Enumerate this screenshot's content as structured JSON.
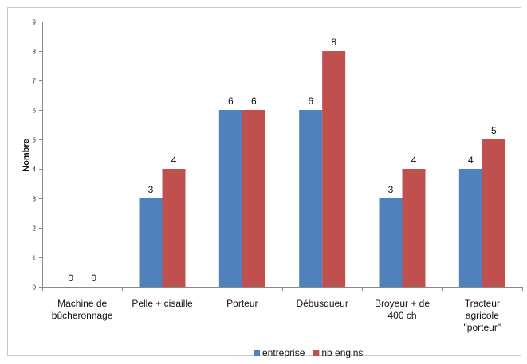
{
  "chart_data": {
    "type": "bar",
    "title": "",
    "xlabel": "",
    "ylabel": "Nombre",
    "ylim": [
      0,
      9
    ],
    "yticks": [
      0,
      1,
      2,
      3,
      4,
      5,
      6,
      7,
      8,
      9
    ],
    "grid": false,
    "legend_position": "bottom",
    "categories": [
      [
        "Machine de",
        "bûcheronnage"
      ],
      [
        "Pelle + cisaille"
      ],
      [
        "Porteur"
      ],
      [
        "Débusqueur"
      ],
      [
        "Broyeur + de",
        "400 ch"
      ],
      [
        "Tracteur",
        "agricole",
        "\"porteur\""
      ]
    ],
    "series": [
      {
        "name": "entreprise",
        "color": "#4f81bd",
        "values": [
          0,
          3,
          6,
          6,
          3,
          4
        ]
      },
      {
        "name": "nb engins",
        "color": "#c0504d",
        "values": [
          0,
          4,
          6,
          8,
          4,
          5
        ]
      }
    ]
  }
}
